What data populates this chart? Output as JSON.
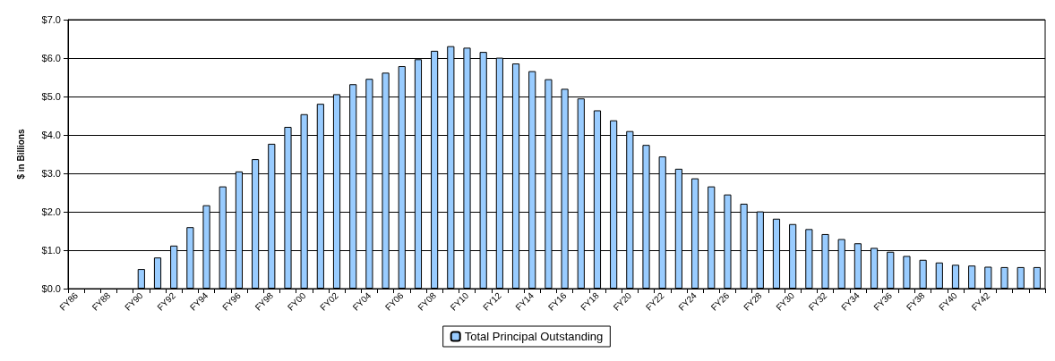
{
  "chart_data": {
    "type": "bar",
    "ylabel": "$ in Billions",
    "categories": [
      "FY86",
      null,
      "FY88",
      null,
      "FY90",
      null,
      "FY92",
      null,
      "FY94",
      null,
      "FY96",
      null,
      "FY98",
      null,
      "FY00",
      null,
      "FY02",
      null,
      "FY04",
      null,
      "FY06",
      null,
      "FY08",
      null,
      "FY10",
      null,
      "FY12",
      null,
      "FY14",
      null,
      "FY16",
      null,
      "FY18",
      null,
      "FY20",
      null,
      "FY22",
      null,
      "FY24",
      null,
      "FY26",
      null,
      "FY28",
      null,
      "FY30",
      null,
      "FY32",
      null,
      "FY34",
      null,
      "FY36",
      null,
      "FY38",
      null,
      "FY40",
      null,
      "FY42",
      null,
      null,
      null
    ],
    "series": [
      {
        "name": "Total Principal Outstanding",
        "color": "#99ccff",
        "values": [
          0,
          0,
          0,
          0,
          0.51,
          0.81,
          1.12,
          1.6,
          2.17,
          2.66,
          3.05,
          3.37,
          3.77,
          4.21,
          4.54,
          4.81,
          5.06,
          5.32,
          5.46,
          5.62,
          5.79,
          5.97,
          6.19,
          6.31,
          6.27,
          6.16,
          6.01,
          5.86,
          5.66,
          5.45,
          5.2,
          4.95,
          4.64,
          4.38,
          4.1,
          3.74,
          3.44,
          3.12,
          2.87,
          2.66,
          2.45,
          2.21,
          2.01,
          1.82,
          1.68,
          1.55,
          1.42,
          1.29,
          1.18,
          1.06,
          0.96,
          0.85,
          0.75,
          0.68,
          0.62,
          0.6,
          0.57,
          0.56,
          0.56,
          0.56
        ]
      }
    ],
    "ylim": [
      0,
      7
    ],
    "yticks": [
      {
        "value": 0,
        "label": "$0.0"
      },
      {
        "value": 1,
        "label": "$1.0"
      },
      {
        "value": 2,
        "label": "$2.0"
      },
      {
        "value": 3,
        "label": "$3.0"
      },
      {
        "value": 4,
        "label": "$4.0"
      },
      {
        "value": 5,
        "label": "$5.0"
      },
      {
        "value": 6,
        "label": "$6.0"
      },
      {
        "value": 7,
        "label": "$7.0"
      }
    ],
    "grid": "y",
    "legend": "bottom"
  }
}
